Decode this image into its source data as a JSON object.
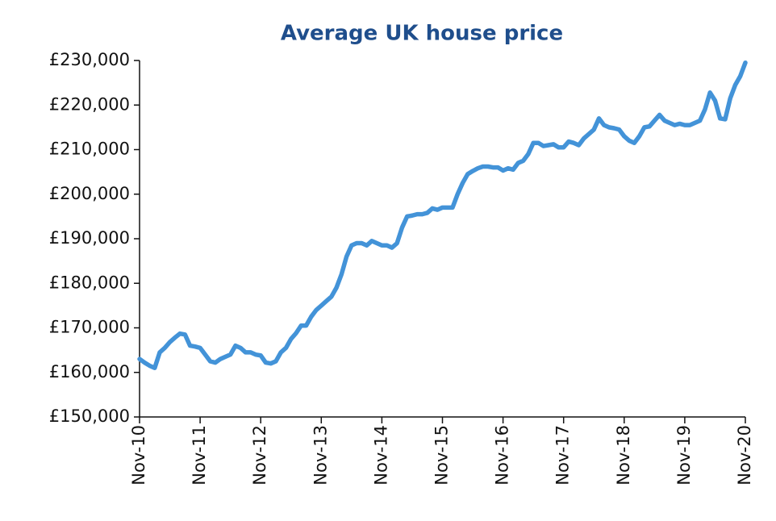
{
  "chart_data": {
    "type": "line",
    "title": "Average UK house price",
    "categories": [
      "Nov-10",
      null,
      null,
      null,
      null,
      null,
      null,
      null,
      null,
      null,
      null,
      null,
      "Nov-11",
      null,
      null,
      null,
      null,
      null,
      null,
      null,
      null,
      null,
      null,
      null,
      "Nov-12",
      null,
      null,
      null,
      null,
      null,
      null,
      null,
      null,
      null,
      null,
      null,
      "Nov-13",
      null,
      null,
      null,
      null,
      null,
      null,
      null,
      null,
      null,
      null,
      null,
      "Nov-14",
      null,
      null,
      null,
      null,
      null,
      null,
      null,
      null,
      null,
      null,
      null,
      "Nov-15",
      null,
      null,
      null,
      null,
      null,
      null,
      null,
      null,
      null,
      null,
      null,
      "Nov-16",
      null,
      null,
      null,
      null,
      null,
      null,
      null,
      null,
      null,
      null,
      null,
      "Nov-17",
      null,
      null,
      null,
      null,
      null,
      null,
      null,
      null,
      null,
      null,
      null,
      "Nov-18",
      null,
      null,
      null,
      null,
      null,
      null,
      null,
      null,
      null,
      null,
      null,
      "Nov-19",
      null,
      null,
      null,
      null,
      null,
      null,
      null,
      null,
      null,
      null,
      null,
      "Nov-20"
    ],
    "values": [
      163000,
      162200,
      161500,
      161000,
      164500,
      165500,
      166800,
      167800,
      168700,
      168500,
      166000,
      165800,
      165500,
      164000,
      162500,
      162200,
      163000,
      163500,
      164000,
      166000,
      165500,
      164500,
      164500,
      164000,
      163800,
      162200,
      162000,
      162500,
      164500,
      165500,
      167500,
      168800,
      170500,
      170500,
      172500,
      174000,
      175000,
      176000,
      177000,
      179000,
      182000,
      186000,
      188500,
      189000,
      189000,
      188500,
      189500,
      189000,
      188500,
      188500,
      188000,
      189000,
      192500,
      195000,
      195200,
      195500,
      195500,
      195800,
      196800,
      196500,
      197000,
      197000,
      197000,
      200000,
      202500,
      204500,
      205200,
      205800,
      206200,
      206200,
      206000,
      206000,
      205300,
      205800,
      205500,
      207000,
      207500,
      209000,
      211500,
      211500,
      210800,
      211000,
      211200,
      210500,
      210500,
      211800,
      211500,
      211000,
      212500,
      213500,
      214500,
      217000,
      215500,
      215000,
      214800,
      214500,
      213000,
      212000,
      211500,
      213000,
      215000,
      215200,
      216500,
      217800,
      216500,
      216000,
      215500,
      215800,
      215500,
      215500,
      216000,
      216500,
      219000,
      222800,
      221000,
      217000,
      216800,
      221500,
      224500,
      226500,
      229500
    ],
    "color": "#4393d8",
    "ylim": [
      150000,
      230000
    ],
    "yticks": [
      {
        "value": 150000,
        "label": "£150,000"
      },
      {
        "value": 160000,
        "label": "£160,000"
      },
      {
        "value": 170000,
        "label": "£170,000"
      },
      {
        "value": 180000,
        "label": "£180,000"
      },
      {
        "value": 190000,
        "label": "£190,000"
      },
      {
        "value": 200000,
        "label": "£200,000"
      },
      {
        "value": 210000,
        "label": "£210,000"
      },
      {
        "value": 220000,
        "label": "£220,000"
      },
      {
        "value": 230000,
        "label": "£230,000"
      }
    ],
    "grid": false
  }
}
